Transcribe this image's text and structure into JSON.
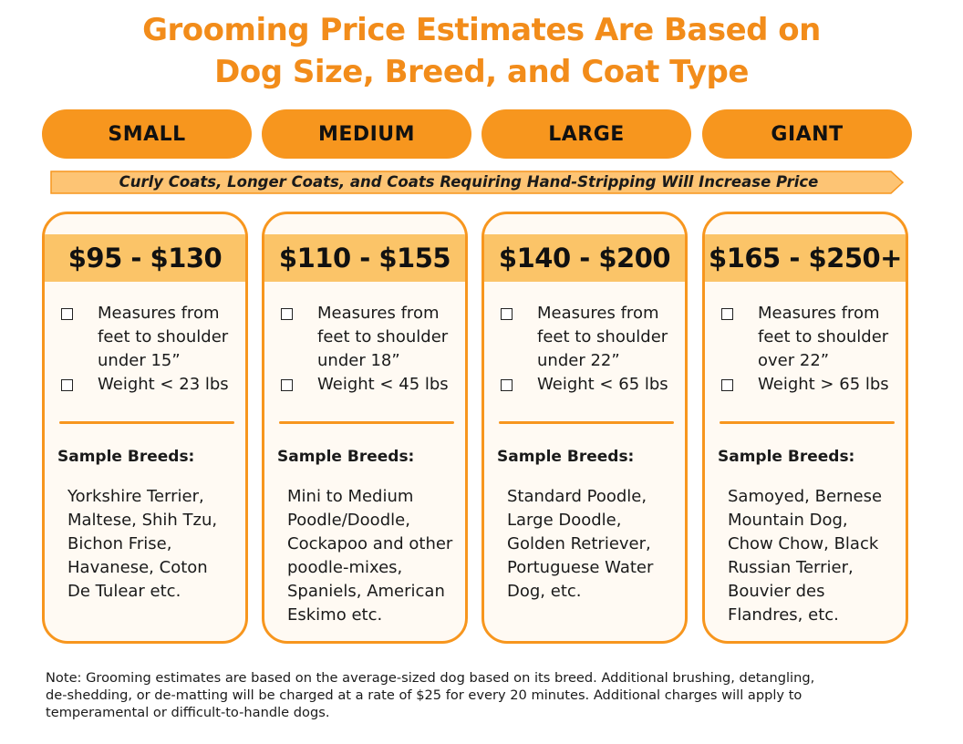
{
  "title": {
    "line1": "Grooming Price Estimates Are Based on",
    "line2": "Dog Size, Breed, and Coat Type"
  },
  "banner": "Curly Coats, Longer Coats, and Coats Requiring Hand-Stripping Will Increase Price",
  "colors": {
    "accent": "#f7961e",
    "title": "#f28c1a",
    "price_band": "#fbc468",
    "banner_fill": "#fdc474"
  },
  "sizes": [
    {
      "label": "SMALL",
      "price": "$95 - $130",
      "measure": [
        "Measures from",
        "feet to shoulder",
        "under 15”"
      ],
      "weight": "Weight < 23 lbs",
      "breeds_label": "Sample Breeds:",
      "breeds": [
        "Yorkshire Terrier,",
        "Maltese, Shih Tzu,",
        "Bichon Frise,",
        "Havanese, Coton",
        "De Tulear etc."
      ]
    },
    {
      "label": "MEDIUM",
      "price": "$110 - $155",
      "measure": [
        "Measures from",
        "feet to shoulder",
        "under 18”"
      ],
      "weight": "Weight < 45 lbs",
      "breeds_label": "Sample Breeds:",
      "breeds": [
        "Mini to Medium",
        "Poodle/Doodle,",
        "Cockapoo and other",
        "poodle-mixes,",
        "Spaniels, American",
        "Eskimo etc."
      ]
    },
    {
      "label": "LARGE",
      "price": "$140 - $200",
      "measure": [
        "Measures from",
        "feet to shoulder",
        "under 22”"
      ],
      "weight": "Weight < 65 lbs",
      "breeds_label": "Sample Breeds:",
      "breeds": [
        "Standard Poodle,",
        "Large Doodle,",
        "Golden Retriever,",
        "Portuguese Water",
        "Dog, etc."
      ]
    },
    {
      "label": "GIANT",
      "price": "$165 - $250+",
      "measure": [
        "Measures from",
        "feet to shoulder",
        "over 22”"
      ],
      "weight": "Weight > 65 lbs",
      "breeds_label": "Sample Breeds:",
      "breeds": [
        "Samoyed, Bernese",
        "Mountain Dog,",
        "Chow Chow, Black",
        "Russian Terrier,",
        "Bouvier des",
        "Flandres, etc."
      ]
    }
  ],
  "note": {
    "line1": "Note: Grooming estimates are based on the average-sized dog based on its breed.  Additional brushing, detangling,",
    "line2": "de-shedding, or de-matting will be charged at a rate of $25 for every 20 minutes.  Additional charges will apply to",
    "line3": "temperamental or difficult-to-handle dogs."
  }
}
